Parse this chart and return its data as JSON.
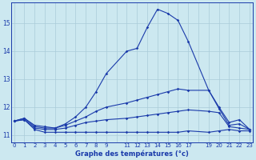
{
  "xlabel": "Graphe des températures (°c)",
  "bg_color": "#cce8f0",
  "grid_color": "#aaccd8",
  "line_color": "#1a3aaa",
  "ylim": [
    10.75,
    15.75
  ],
  "xlim": [
    -0.3,
    23.3
  ],
  "yticks": [
    11,
    12,
    13,
    14,
    15
  ],
  "xtick_labels": [
    "0",
    "1",
    "2",
    "3",
    "4",
    "5",
    "6",
    "7",
    "8",
    "9",
    "",
    "11",
    "12",
    "13",
    "14",
    "15",
    "16",
    "17",
    "",
    "19",
    "20",
    "21",
    "22",
    "23"
  ],
  "series": [
    {
      "x": [
        0,
        1,
        2,
        3,
        4,
        5,
        6,
        7,
        8,
        9,
        11,
        12,
        13,
        14,
        15,
        16,
        17,
        19,
        20,
        21,
        22,
        23
      ],
      "y": [
        11.5,
        11.55,
        11.2,
        11.1,
        11.1,
        11.1,
        11.1,
        11.1,
        11.1,
        11.1,
        11.1,
        11.1,
        11.1,
        11.1,
        11.1,
        11.1,
        11.15,
        11.1,
        11.15,
        11.2,
        11.15,
        11.15
      ]
    },
    {
      "x": [
        0,
        1,
        2,
        3,
        4,
        5,
        6,
        7,
        8,
        9,
        11,
        12,
        13,
        14,
        15,
        16,
        17,
        19,
        20,
        21,
        22,
        23
      ],
      "y": [
        11.5,
        11.55,
        11.25,
        11.2,
        11.2,
        11.25,
        11.35,
        11.45,
        11.5,
        11.55,
        11.6,
        11.65,
        11.7,
        11.75,
        11.8,
        11.85,
        11.9,
        11.85,
        11.8,
        11.3,
        11.25,
        11.2
      ]
    },
    {
      "x": [
        0,
        1,
        2,
        3,
        4,
        5,
        6,
        7,
        8,
        9,
        11,
        12,
        13,
        14,
        15,
        16,
        17,
        19,
        20,
        21,
        22,
        23
      ],
      "y": [
        11.5,
        11.6,
        11.3,
        11.25,
        11.25,
        11.35,
        11.5,
        11.65,
        11.85,
        12.0,
        12.15,
        12.25,
        12.35,
        12.45,
        12.55,
        12.65,
        12.6,
        12.6,
        11.95,
        11.35,
        11.4,
        11.2
      ]
    },
    {
      "x": [
        0,
        1,
        2,
        3,
        4,
        5,
        6,
        7,
        8,
        9,
        11,
        12,
        13,
        14,
        15,
        16,
        17,
        19,
        20,
        21,
        22,
        23
      ],
      "y": [
        11.5,
        11.6,
        11.35,
        11.3,
        11.25,
        11.4,
        11.65,
        12.0,
        12.55,
        13.2,
        14.0,
        14.1,
        14.85,
        15.5,
        15.35,
        15.1,
        14.35,
        12.6,
        12.0,
        11.45,
        11.55,
        11.2
      ]
    }
  ]
}
